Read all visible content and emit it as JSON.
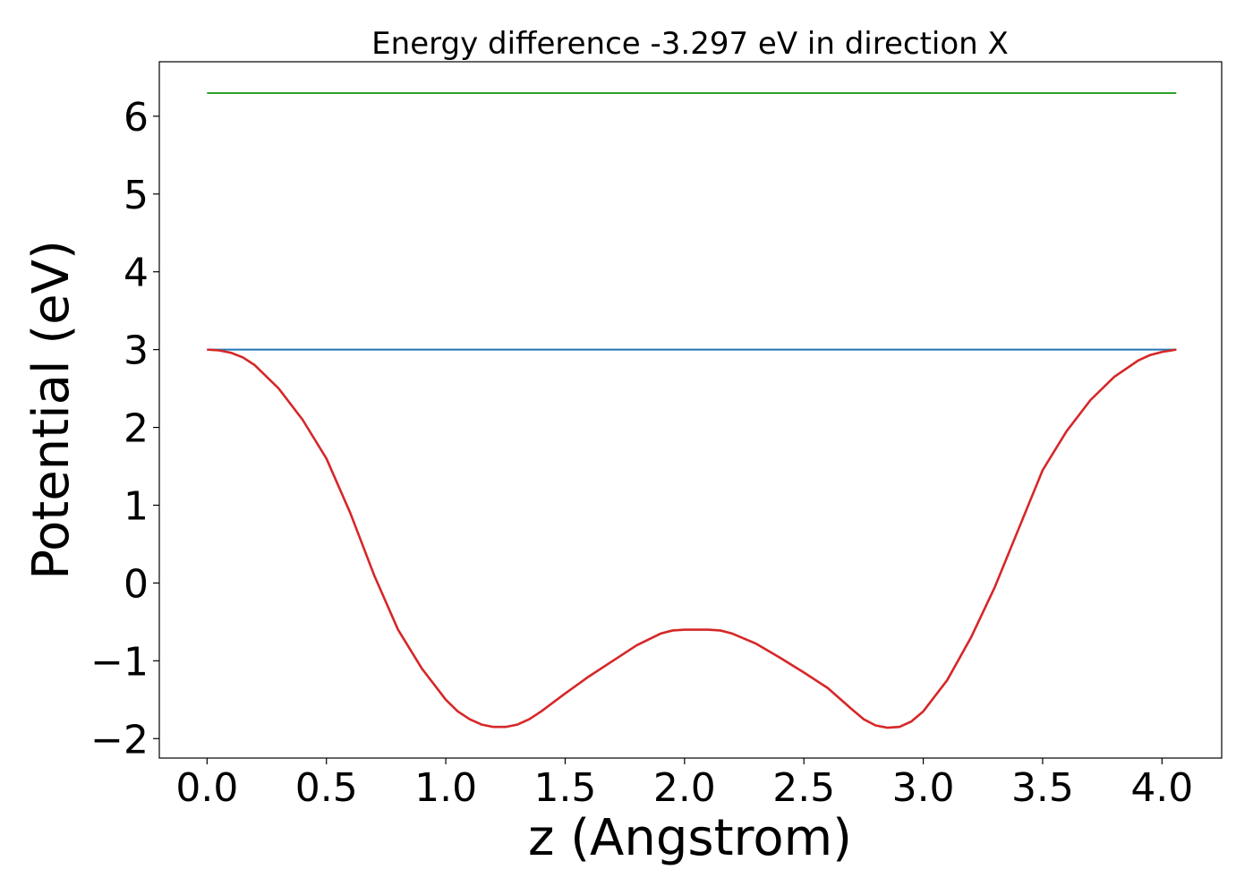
{
  "chart_data": {
    "type": "line",
    "title": "Energy difference -3.297 eV in direction X",
    "xlabel": "z (Angstrom)",
    "ylabel": "Potential (eV)",
    "xlim": [
      -0.2,
      4.25
    ],
    "ylim": [
      -2.25,
      6.7
    ],
    "xticks": [
      0.0,
      0.5,
      1.0,
      1.5,
      2.0,
      2.5,
      3.0,
      3.5,
      4.0
    ],
    "xtick_labels": [
      "0.0",
      "0.5",
      "1.0",
      "1.5",
      "2.0",
      "2.5",
      "3.0",
      "3.5",
      "4.0"
    ],
    "yticks": [
      -2,
      -1,
      0,
      1,
      2,
      3,
      4,
      5,
      6
    ],
    "ytick_labels": [
      "−2",
      "−1",
      "0",
      "1",
      "2",
      "3",
      "4",
      "5",
      "6"
    ],
    "grid": false,
    "series": [
      {
        "color": "#2ca02c",
        "x": [
          0.0,
          4.06
        ],
        "y": [
          6.297,
          6.297
        ]
      },
      {
        "color": "#1f77b4",
        "x": [
          0.0,
          4.06
        ],
        "y": [
          3.0,
          3.0
        ]
      },
      {
        "color": "#d62728",
        "x": [
          0.0,
          0.05,
          0.1,
          0.15,
          0.2,
          0.3,
          0.4,
          0.5,
          0.6,
          0.7,
          0.8,
          0.9,
          1.0,
          1.05,
          1.1,
          1.15,
          1.2,
          1.25,
          1.3,
          1.35,
          1.4,
          1.5,
          1.6,
          1.7,
          1.8,
          1.9,
          1.95,
          2.0,
          2.05,
          2.1,
          2.15,
          2.2,
          2.3,
          2.4,
          2.5,
          2.6,
          2.7,
          2.75,
          2.8,
          2.85,
          2.9,
          2.95,
          3.0,
          3.1,
          3.2,
          3.3,
          3.4,
          3.5,
          3.6,
          3.7,
          3.8,
          3.9,
          3.95,
          4.0,
          4.06
        ],
        "y": [
          3.0,
          2.99,
          2.96,
          2.9,
          2.8,
          2.5,
          2.1,
          1.6,
          0.9,
          0.1,
          -0.6,
          -1.1,
          -1.5,
          -1.65,
          -1.75,
          -1.82,
          -1.85,
          -1.85,
          -1.82,
          -1.75,
          -1.65,
          -1.42,
          -1.2,
          -1.0,
          -0.8,
          -0.65,
          -0.61,
          -0.6,
          -0.6,
          -0.6,
          -0.61,
          -0.65,
          -0.78,
          -0.96,
          -1.15,
          -1.35,
          -1.62,
          -1.75,
          -1.83,
          -1.86,
          -1.85,
          -1.78,
          -1.65,
          -1.25,
          -0.7,
          -0.05,
          0.7,
          1.45,
          1.95,
          2.35,
          2.65,
          2.86,
          2.93,
          2.97,
          3.0
        ]
      }
    ]
  }
}
